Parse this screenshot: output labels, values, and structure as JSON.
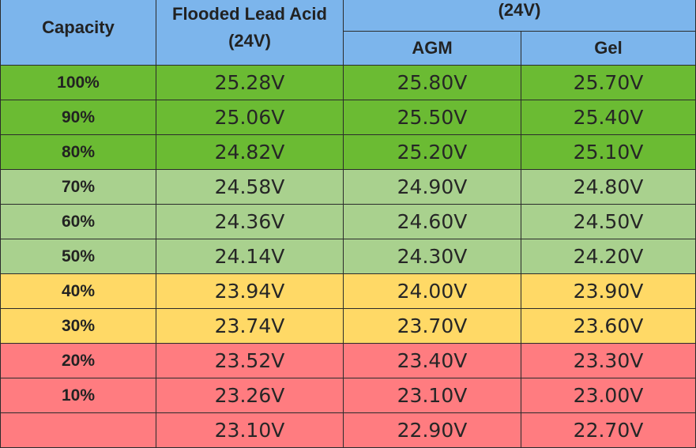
{
  "header": {
    "capacity": "Capacity",
    "flooded_line1": "Flooded Lead Acid",
    "flooded_line2": "(24V)",
    "group": "(24V)",
    "agm": "AGM",
    "gel": "Gel"
  },
  "colors": {
    "header": "#7cb5ec",
    "green": "#6bbb33",
    "light_green": "#a9d18e",
    "yellow": "#ffd966",
    "red": "#ff7c80"
  },
  "rows": [
    {
      "capacity": "100%",
      "flooded": "25.28V",
      "agm": "25.80V",
      "gel": "25.70V",
      "color": "#6bbb33"
    },
    {
      "capacity": "90%",
      "flooded": "25.06V",
      "agm": "25.50V",
      "gel": "25.40V",
      "color": "#6bbb33"
    },
    {
      "capacity": "80%",
      "flooded": "24.82V",
      "agm": "25.20V",
      "gel": "25.10V",
      "color": "#6bbb33"
    },
    {
      "capacity": "70%",
      "flooded": "24.58V",
      "agm": "24.90V",
      "gel": "24.80V",
      "color": "#a9d18e"
    },
    {
      "capacity": "60%",
      "flooded": "24.36V",
      "agm": "24.60V",
      "gel": "24.50V",
      "color": "#a9d18e"
    },
    {
      "capacity": "50%",
      "flooded": "24.14V",
      "agm": "24.30V",
      "gel": "24.20V",
      "color": "#a9d18e"
    },
    {
      "capacity": "40%",
      "flooded": "23.94V",
      "agm": "24.00V",
      "gel": "23.90V",
      "color": "#ffd966"
    },
    {
      "capacity": "30%",
      "flooded": "23.74V",
      "agm": "23.70V",
      "gel": "23.60V",
      "color": "#ffd966"
    },
    {
      "capacity": "20%",
      "flooded": "23.52V",
      "agm": "23.40V",
      "gel": "23.30V",
      "color": "#ff7c80"
    },
    {
      "capacity": "10%",
      "flooded": "23.26V",
      "agm": "23.10V",
      "gel": "23.00V",
      "color": "#ff7c80"
    },
    {
      "capacity": "",
      "flooded": "23.10V",
      "agm": "22.90V",
      "gel": "22.70V",
      "color": "#ff7c80"
    }
  ]
}
